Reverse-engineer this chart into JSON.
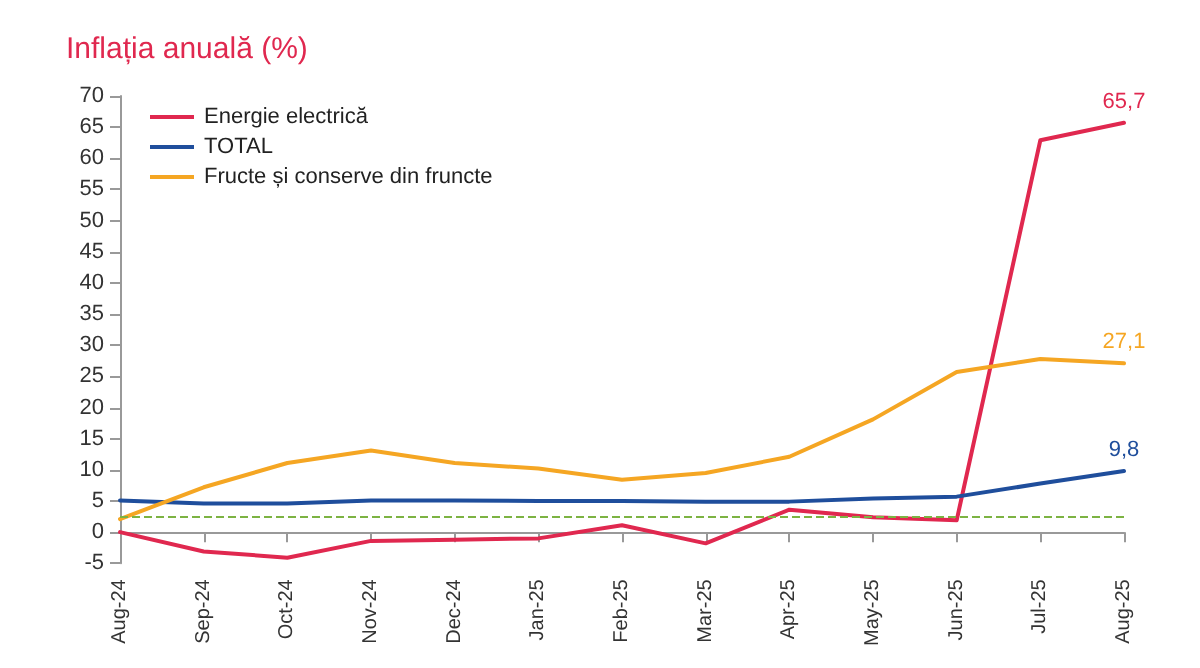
{
  "chart_data": {
    "type": "line",
    "title": "Inflația anuală (%)",
    "categories": [
      "Aug-24",
      "Sep-24",
      "Oct-24",
      "Nov-24",
      "Dec-24",
      "Jan-25",
      "Feb-25",
      "Mar-25",
      "Apr-25",
      "May-25",
      "Jun-25",
      "Jul-25",
      "Aug-25"
    ],
    "series": [
      {
        "name": "Energie electrică",
        "color": "#e0284f",
        "values": [
          0,
          -3.1,
          -4.1,
          -1.4,
          -1.2,
          -1.0,
          1.1,
          -1.8,
          3.6,
          2.4,
          1.9,
          62.9,
          65.7
        ],
        "value_labels": [
          null,
          null,
          null,
          null,
          null,
          null,
          null,
          null,
          null,
          null,
          null,
          null,
          "65,7"
        ]
      },
      {
        "name": "TOTAL",
        "color": "#1f4e9c",
        "values": [
          5.1,
          4.6,
          4.6,
          5.1,
          5.1,
          5.0,
          5.0,
          4.9,
          4.9,
          5.4,
          5.7,
          7.8,
          9.8
        ],
        "value_labels": [
          null,
          null,
          null,
          null,
          null,
          null,
          null,
          null,
          null,
          null,
          null,
          null,
          "9,8"
        ]
      },
      {
        "name": "Fructe și conserve din fruncte",
        "color": "#f5a623",
        "values": [
          2.1,
          7.2,
          11.1,
          13.1,
          11.1,
          10.2,
          8.4,
          9.5,
          12.1,
          18.1,
          25.7,
          27.8,
          27.1
        ],
        "value_labels": [
          null,
          null,
          null,
          null,
          null,
          null,
          null,
          null,
          null,
          null,
          null,
          null,
          "27,1"
        ]
      }
    ],
    "ylim": [
      -5,
      70
    ],
    "yticks": [
      -5,
      0,
      5,
      10,
      15,
      20,
      25,
      30,
      35,
      40,
      45,
      50,
      55,
      60,
      65,
      70
    ],
    "ref_lines": [
      {
        "axis": "y",
        "value": 2.5,
        "color": "#7cb342",
        "line_style": "dashed"
      }
    ],
    "grid": false,
    "legend": "top left",
    "marker": "none",
    "line_style": "solid"
  }
}
